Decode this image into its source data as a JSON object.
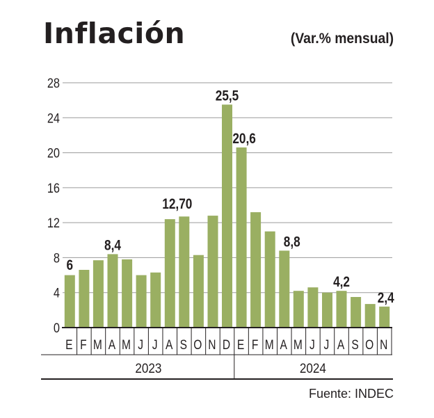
{
  "header": {
    "title": "Inflación",
    "subtitle": "(Var.% mensual)"
  },
  "footer": {
    "source": "Fuente: INDEC"
  },
  "colors": {
    "bar": "#9aaf62",
    "text": "#231f20",
    "grid": "#9a9a9a",
    "axis": "#231f20"
  },
  "chart_data": {
    "type": "bar",
    "title": "Inflación",
    "subtitle": "(Var.% mensual)",
    "xlabel": "",
    "ylabel": "",
    "ylim": [
      0,
      28
    ],
    "yticks": [
      0,
      4,
      8,
      12,
      16,
      20,
      24,
      28
    ],
    "grid": true,
    "legend": "none",
    "categories": [
      "E",
      "F",
      "M",
      "A",
      "M",
      "J",
      "J",
      "A",
      "S",
      "O",
      "N",
      "D",
      "E",
      "F",
      "M",
      "A",
      "M",
      "J",
      "J",
      "A",
      "S",
      "O",
      "N"
    ],
    "groups": [
      {
        "label": "2023",
        "count": 12
      },
      {
        "label": "2024",
        "count": 11
      }
    ],
    "values": [
      6.0,
      6.6,
      7.7,
      8.4,
      7.8,
      6.0,
      6.3,
      12.4,
      12.7,
      8.3,
      12.8,
      25.5,
      20.6,
      13.2,
      11.0,
      8.8,
      4.2,
      4.6,
      4.0,
      4.2,
      3.5,
      2.7,
      2.4
    ],
    "data_labels": [
      {
        "index": 0,
        "text": "6"
      },
      {
        "index": 3,
        "text": "8,4"
      },
      {
        "index": 8,
        "text": "12,70"
      },
      {
        "index": 11,
        "text": "25,5"
      },
      {
        "index": 12,
        "text": "20,6"
      },
      {
        "index": 15,
        "text": "8,8"
      },
      {
        "index": 19,
        "text": "4,2"
      },
      {
        "index": 22,
        "text": "2,4"
      }
    ],
    "source": "Fuente: INDEC"
  }
}
